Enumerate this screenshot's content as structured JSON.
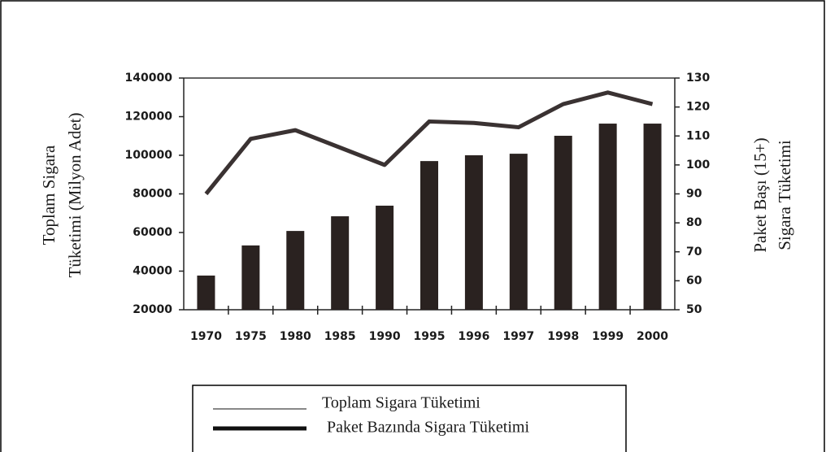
{
  "chart_data": {
    "type": "bar-line",
    "ylabel": [
      "Toplam Sigara",
      "Tüketimi (Milyon Adet)"
    ],
    "y2label": [
      "Paket Başı (15+)",
      "Sigara Tüketimi"
    ],
    "categories": [
      "1970",
      "1975",
      "1980",
      "1985",
      "1990",
      "1995",
      "1996",
      "1997",
      "1998",
      "1999",
      "2000"
    ],
    "series": [
      {
        "name": "Toplam Sigara Tüketimi",
        "type": "bar",
        "color": "#2a2220",
        "line_width": 1,
        "values": [
          37700,
          53300,
          60800,
          68400,
          73900,
          97000,
          100000,
          100800,
          110100,
          116400,
          116400
        ]
      },
      {
        "name": "Paket Bazında Sigara Tüketimi",
        "type": "line",
        "axis": "y2",
        "color": "#3a3232",
        "line_width": 5,
        "values": [
          90,
          109,
          112,
          106,
          100,
          115,
          114.5,
          113,
          121,
          125,
          121
        ]
      }
    ],
    "ylim": [
      20000,
      140000
    ],
    "yticks": [
      20000,
      40000,
      60000,
      80000,
      100000,
      120000,
      140000
    ],
    "y2lim": [
      50,
      130
    ],
    "y2ticks": [
      50,
      60,
      70,
      80,
      90,
      100,
      110,
      120,
      130
    ]
  }
}
